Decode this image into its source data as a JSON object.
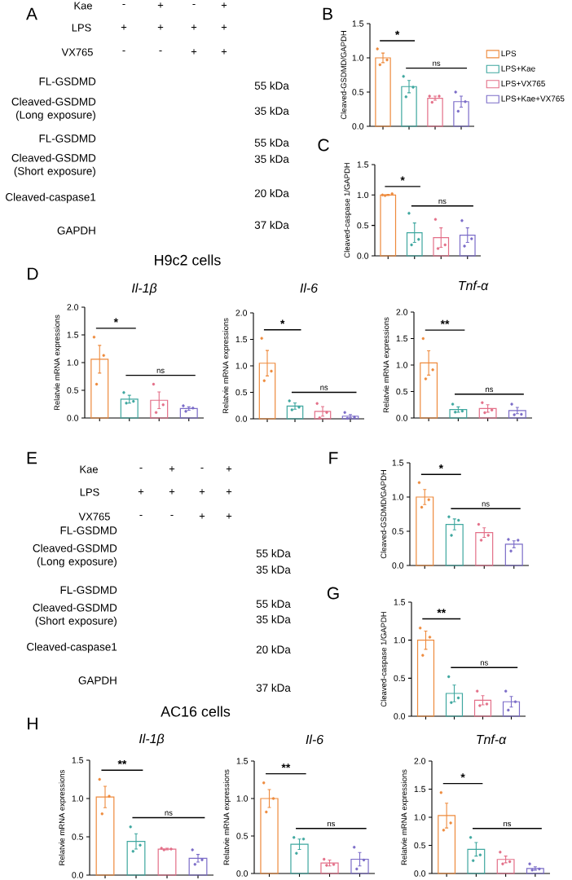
{
  "chart_data": [
    {
      "type": "other",
      "title": "A",
      "y_categories": [
        "Kae",
        "LPS",
        "VX765"
      ],
      "cell_labels": [
        [
          "-",
          "+",
          "-",
          "+"
        ],
        [
          "+",
          "+",
          "+",
          "+"
        ],
        [
          "-",
          "-",
          "+",
          "+"
        ]
      ],
      "annotations": [
        "FL-GSDMD",
        "Cleaved-GSDMD (Long exposure)",
        "FL-GSDMD",
        "Cleaved-GSDMD (Short exposure)",
        "Cleaved-caspase1",
        "GAPDH",
        "55 kDa",
        "35 kDa",
        "55 kDa",
        "35 kDa",
        "20 kDa",
        "37 kDa"
      ],
      "xlabel": "H9c2 cells"
    },
    {
      "type": "bar",
      "title": "B",
      "ylabel": "Cleaved-GSDMD/GAPDH",
      "categories": [
        null,
        null,
        null,
        null
      ],
      "series": [
        {
          "type": "bar",
          "name": "LPS",
          "color": "#EE8A3C",
          "values": [
            1.0,
            null,
            null,
            null
          ],
          "errors": [
            0.07,
            null,
            null,
            null
          ]
        },
        {
          "type": "bar",
          "name": "LPS+Kae",
          "color": "#3EA79F",
          "values": [
            null,
            0.58,
            null,
            null
          ],
          "errors": [
            null,
            0.09,
            null,
            null
          ]
        },
        {
          "type": "bar",
          "name": "LPS+VX765",
          "color": "#E36F88",
          "values": [
            null,
            null,
            0.41,
            null
          ],
          "errors": [
            null,
            null,
            0.03,
            null
          ]
        },
        {
          "type": "bar",
          "name": "LPS+Kae+VX765",
          "color": "#7B6CC8",
          "values": [
            null,
            null,
            null,
            0.36
          ],
          "errors": [
            null,
            null,
            null,
            0.08
          ]
        },
        {
          "type": "scatter",
          "values": [
            1.13,
            0.73,
            0.44,
            0.5
          ],
          "colors": [
            "#EE8A3C",
            "#3EA79F",
            "#E36F88",
            "#7B6CC8"
          ]
        },
        {
          "type": "scatter",
          "values": [
            0.97,
            0.57,
            0.44,
            0.36
          ],
          "colors": [
            "#EE8A3C",
            "#3EA79F",
            "#E36F88",
            "#7B6CC8"
          ]
        },
        {
          "type": "scatter",
          "values": [
            0.9,
            0.43,
            0.35,
            0.22
          ],
          "colors": [
            "#EE8A3C",
            "#3EA79F",
            "#E36F88",
            "#7B6CC8"
          ]
        }
      ],
      "ylim": [
        0,
        1.5
      ],
      "yticks": [
        {
          "value": 0,
          "label": "0.0"
        },
        {
          "value": 0.5,
          "label": "0.5"
        },
        {
          "value": 1,
          "label": "1.0"
        },
        {
          "value": 1.5,
          "label": "1.5"
        }
      ],
      "annotations": [
        "*",
        "ns"
      ],
      "tick_labels": "y",
      "marker": "circle",
      "legend": "right"
    },
    {
      "type": "bar",
      "title": "C",
      "ylabel": "Cleaved-caspase 1/GAPDH",
      "categories": [
        null,
        null,
        null,
        null
      ],
      "series": [
        {
          "type": "bar",
          "values": [
            1.0,
            0.38,
            0.3,
            0.34
          ],
          "colors": [
            "#EE8A3C",
            "#3EA79F",
            "#E36F88",
            "#7B6CC8"
          ],
          "errors": [
            0.01,
            0.16,
            0.16,
            0.12
          ]
        },
        {
          "type": "scatter",
          "values": [
            1.0,
            0.7,
            0.6,
            0.58
          ],
          "colors": [
            "#EE8A3C",
            "#3EA79F",
            "#E36F88",
            "#7B6CC8"
          ]
        },
        {
          "type": "scatter",
          "values": [
            1.02,
            0.27,
            0.18,
            0.28
          ],
          "colors": [
            "#EE8A3C",
            "#3EA79F",
            "#E36F88",
            "#7B6CC8"
          ]
        },
        {
          "type": "scatter",
          "values": [
            0.99,
            0.18,
            0.12,
            0.16
          ],
          "colors": [
            "#EE8A3C",
            "#3EA79F",
            "#E36F88",
            "#7B6CC8"
          ]
        }
      ],
      "ylim": [
        0,
        1.5
      ],
      "yticks": [
        {
          "value": 0,
          "label": "0.0"
        },
        {
          "value": 0.5,
          "label": "0.5"
        },
        {
          "value": 1,
          "label": "1.0"
        },
        {
          "value": 1.5,
          "label": "1.5"
        }
      ],
      "annotations": [
        "*",
        "ns"
      ],
      "tick_labels": "y",
      "marker": "circle"
    },
    {
      "type": "bar",
      "title": "D",
      "subtitle": "Il-1β",
      "ylabel": "Relatvie mRNA expressions",
      "categories": [
        null,
        null,
        null,
        null
      ],
      "series": [
        {
          "type": "bar",
          "values": [
            1.06,
            0.34,
            0.32,
            0.17
          ],
          "colors": [
            "#EE8A3C",
            "#3EA79F",
            "#E36F88",
            "#7B6CC8"
          ],
          "errors": [
            0.25,
            0.07,
            0.15,
            0.03
          ]
        },
        {
          "type": "scatter",
          "values": [
            1.46,
            0.46,
            0.61,
            0.22
          ],
          "colors": [
            "#EE8A3C",
            "#3EA79F",
            "#E36F88",
            "#7B6CC8"
          ]
        },
        {
          "type": "scatter",
          "values": [
            1.13,
            0.3,
            0.24,
            0.18
          ],
          "colors": [
            "#EE8A3C",
            "#3EA79F",
            "#E36F88",
            "#7B6CC8"
          ]
        },
        {
          "type": "scatter",
          "values": [
            0.61,
            0.27,
            0.1,
            0.12
          ],
          "colors": [
            "#EE8A3C",
            "#3EA79F",
            "#E36F88",
            "#7B6CC8"
          ]
        }
      ],
      "ylim": [
        0,
        2
      ],
      "yticks": [
        {
          "value": 0,
          "label": "0.0"
        },
        {
          "value": 0.5,
          "label": "0.5"
        },
        {
          "value": 1,
          "label": "1.0"
        },
        {
          "value": 1.5,
          "label": "1.5"
        },
        {
          "value": 2,
          "label": "2.0"
        }
      ],
      "annotations": [
        "*",
        "ns"
      ],
      "tick_labels": "y",
      "marker": "circle"
    },
    {
      "type": "bar",
      "subtitle": "Il-6",
      "ylabel": "Relatvie mRNA expressions",
      "categories": [
        null,
        null,
        null,
        null
      ],
      "series": [
        {
          "type": "bar",
          "values": [
            1.05,
            0.24,
            0.14,
            0.05
          ],
          "colors": [
            "#EE8A3C",
            "#3EA79F",
            "#E36F88",
            "#7B6CC8"
          ],
          "errors": [
            0.24,
            0.06,
            0.09,
            0.03
          ]
        },
        {
          "type": "scatter",
          "values": [
            1.52,
            0.34,
            0.29,
            0.12
          ],
          "colors": [
            "#EE8A3C",
            "#3EA79F",
            "#E36F88",
            "#7B6CC8"
          ]
        },
        {
          "type": "scatter",
          "values": [
            0.9,
            0.22,
            0.12,
            0.03
          ],
          "colors": [
            "#EE8A3C",
            "#3EA79F",
            "#E36F88",
            "#7B6CC8"
          ]
        },
        {
          "type": "scatter",
          "values": [
            0.72,
            0.17,
            0.02,
            0.01
          ],
          "colors": [
            "#EE8A3C",
            "#3EA79F",
            "#E36F88",
            "#7B6CC8"
          ]
        }
      ],
      "ylim": [
        0,
        2
      ],
      "yticks": [
        {
          "value": 0,
          "label": "0.0"
        },
        {
          "value": 0.5,
          "label": "0.5"
        },
        {
          "value": 1,
          "label": "1.0"
        },
        {
          "value": 1.5,
          "label": "1.5"
        },
        {
          "value": 2,
          "label": "2.0"
        }
      ],
      "annotations": [
        "*",
        "ns"
      ],
      "tick_labels": "y",
      "marker": "circle"
    },
    {
      "type": "bar",
      "subtitle": "Tnf-α",
      "ylabel": "Relatvie mRNA expressions",
      "categories": [
        null,
        null,
        null,
        null
      ],
      "series": [
        {
          "type": "bar",
          "values": [
            1.04,
            0.16,
            0.18,
            0.14
          ],
          "colors": [
            "#EE8A3C",
            "#3EA79F",
            "#E36F88",
            "#7B6CC8"
          ],
          "errors": [
            0.23,
            0.05,
            0.07,
            0.06
          ]
        },
        {
          "type": "scatter",
          "values": [
            1.5,
            0.26,
            0.29,
            0.26
          ],
          "colors": [
            "#EE8A3C",
            "#3EA79F",
            "#E36F88",
            "#7B6CC8"
          ]
        },
        {
          "type": "scatter",
          "values": [
            0.91,
            0.13,
            0.15,
            0.07
          ],
          "colors": [
            "#EE8A3C",
            "#3EA79F",
            "#E36F88",
            "#7B6CC8"
          ]
        },
        {
          "type": "scatter",
          "values": [
            0.74,
            0.11,
            0.1,
            0.06
          ],
          "colors": [
            "#EE8A3C",
            "#3EA79F",
            "#E36F88",
            "#7B6CC8"
          ]
        }
      ],
      "ylim": [
        0,
        2
      ],
      "yticks": [
        {
          "value": 0,
          "label": "0.0"
        },
        {
          "value": 0.5,
          "label": "0.5"
        },
        {
          "value": 1,
          "label": "1.0"
        },
        {
          "value": 1.5,
          "label": "1.5"
        },
        {
          "value": 2,
          "label": "2.0"
        }
      ],
      "annotations": [
        "**",
        "ns"
      ],
      "tick_labels": "y",
      "marker": "circle"
    },
    {
      "type": "other",
      "title": "E",
      "y_categories": [
        "Kae",
        "LPS",
        "VX765"
      ],
      "cell_labels": [
        [
          "-",
          "+",
          "-",
          "+"
        ],
        [
          "+",
          "+",
          "+",
          "+"
        ],
        [
          "-",
          "-",
          "+",
          "+"
        ]
      ],
      "annotations": [
        "FL-GSDMD",
        "Cleaved-GSDMD (Long exposure)",
        "FL-GSDMD",
        "Cleaved-GSDMD (Short exposure)",
        "Cleaved-caspase1",
        "GAPDH",
        "55 kDa",
        "35 kDa",
        "55 kDa",
        "35 kDa",
        "20 kDa",
        "37 kDa"
      ],
      "xlabel": "AC16 cells"
    },
    {
      "type": "bar",
      "title": "F",
      "ylabel": "Cleaved-GSDMD/GAPDH",
      "categories": [
        null,
        null,
        null,
        null
      ],
      "series": [
        {
          "type": "bar",
          "values": [
            1.0,
            0.6,
            0.48,
            0.31
          ],
          "colors": [
            "#EE8A3C",
            "#3EA79F",
            "#E36F88",
            "#7B6CC8"
          ],
          "errors": [
            0.11,
            0.08,
            0.07,
            0.05
          ]
        },
        {
          "type": "scatter",
          "values": [
            1.21,
            0.71,
            0.6,
            0.38
          ],
          "colors": [
            "#EE8A3C",
            "#3EA79F",
            "#E36F88",
            "#7B6CC8"
          ]
        },
        {
          "type": "scatter",
          "values": [
            0.96,
            0.66,
            0.44,
            0.37
          ],
          "colors": [
            "#EE8A3C",
            "#3EA79F",
            "#E36F88",
            "#7B6CC8"
          ]
        },
        {
          "type": "scatter",
          "values": [
            0.85,
            0.44,
            0.37,
            0.21
          ],
          "colors": [
            "#EE8A3C",
            "#3EA79F",
            "#E36F88",
            "#7B6CC8"
          ]
        }
      ],
      "ylim": [
        0,
        1.5
      ],
      "yticks": [
        {
          "value": 0,
          "label": "0.0"
        },
        {
          "value": 0.5,
          "label": "0.5"
        },
        {
          "value": 1,
          "label": "1.0"
        },
        {
          "value": 1.5,
          "label": "1.5"
        }
      ],
      "annotations": [
        "*",
        "ns"
      ],
      "tick_labels": "y",
      "marker": "circle"
    },
    {
      "type": "bar",
      "title": "G",
      "ylabel": "Cleaved-caspase 1/GAPDH",
      "categories": [
        null,
        null,
        null,
        null
      ],
      "series": [
        {
          "type": "bar",
          "values": [
            1.0,
            0.3,
            0.21,
            0.19
          ],
          "colors": [
            "#EE8A3C",
            "#3EA79F",
            "#E36F88",
            "#7B6CC8"
          ],
          "errors": [
            0.12,
            0.11,
            0.06,
            0.07
          ]
        },
        {
          "type": "scatter",
          "values": [
            1.16,
            0.52,
            0.33,
            0.33
          ],
          "colors": [
            "#EE8A3C",
            "#3EA79F",
            "#E36F88",
            "#7B6CC8"
          ]
        },
        {
          "type": "scatter",
          "values": [
            1.04,
            0.24,
            0.16,
            0.19
          ],
          "colors": [
            "#EE8A3C",
            "#3EA79F",
            "#E36F88",
            "#7B6CC8"
          ]
        },
        {
          "type": "scatter",
          "values": [
            0.8,
            0.18,
            0.14,
            0.08
          ],
          "colors": [
            "#EE8A3C",
            "#3EA79F",
            "#E36F88",
            "#7B6CC8"
          ]
        }
      ],
      "ylim": [
        0,
        1.5
      ],
      "yticks": [
        {
          "value": 0,
          "label": "0.0"
        },
        {
          "value": 0.5,
          "label": "0.5"
        },
        {
          "value": 1,
          "label": "1.0"
        },
        {
          "value": 1.5,
          "label": "1.5"
        }
      ],
      "annotations": [
        "**",
        "ns"
      ],
      "tick_labels": "y",
      "marker": "circle"
    },
    {
      "type": "bar",
      "title": "H",
      "subtitle": "Il-1β",
      "ylabel": "Relatvie mRNA expressions",
      "categories": [
        null,
        null,
        null,
        null
      ],
      "series": [
        {
          "type": "bar",
          "values": [
            1.02,
            0.44,
            0.34,
            0.22
          ],
          "colors": [
            "#EE8A3C",
            "#3EA79F",
            "#E36F88",
            "#7B6CC8"
          ],
          "errors": [
            0.14,
            0.1,
            0.01,
            0.05
          ]
        },
        {
          "type": "scatter",
          "values": [
            1.25,
            0.63,
            0.35,
            0.33
          ],
          "colors": [
            "#EE8A3C",
            "#3EA79F",
            "#E36F88",
            "#7B6CC8"
          ]
        },
        {
          "type": "scatter",
          "values": [
            1.03,
            0.39,
            0.34,
            0.2
          ],
          "colors": [
            "#EE8A3C",
            "#3EA79F",
            "#E36F88",
            "#7B6CC8"
          ]
        },
        {
          "type": "scatter",
          "values": [
            0.8,
            0.31,
            0.33,
            0.14
          ],
          "colors": [
            "#EE8A3C",
            "#3EA79F",
            "#E36F88",
            "#7B6CC8"
          ]
        }
      ],
      "ylim": [
        0,
        1.5
      ],
      "yticks": [
        {
          "value": 0,
          "label": "0.0"
        },
        {
          "value": 0.5,
          "label": "0.5"
        },
        {
          "value": 1,
          "label": "1.0"
        },
        {
          "value": 1.5,
          "label": "1.5"
        }
      ],
      "annotations": [
        "**",
        "ns"
      ],
      "tick_labels": "y",
      "marker": "circle"
    },
    {
      "type": "bar",
      "subtitle": "Il-6",
      "ylabel": "Relatvie mRNA expressions",
      "categories": [
        null,
        null,
        null,
        null
      ],
      "series": [
        {
          "type": "bar",
          "values": [
            1.0,
            0.39,
            0.14,
            0.19
          ],
          "colors": [
            "#EE8A3C",
            "#3EA79F",
            "#E36F88",
            "#7B6CC8"
          ],
          "errors": [
            0.12,
            0.07,
            0.04,
            0.09
          ]
        },
        {
          "type": "scatter",
          "values": [
            1.21,
            0.48,
            0.19,
            0.35
          ],
          "colors": [
            "#EE8A3C",
            "#3EA79F",
            "#E36F88",
            "#7B6CC8"
          ]
        },
        {
          "type": "scatter",
          "values": [
            1.0,
            0.46,
            0.12,
            0.18
          ],
          "colors": [
            "#EE8A3C",
            "#3EA79F",
            "#E36F88",
            "#7B6CC8"
          ]
        },
        {
          "type": "scatter",
          "values": [
            0.82,
            0.27,
            0.11,
            0.06
          ],
          "colors": [
            "#EE8A3C",
            "#3EA79F",
            "#E36F88",
            "#7B6CC8"
          ]
        }
      ],
      "ylim": [
        0,
        1.5
      ],
      "yticks": [
        {
          "value": 0,
          "label": "0.0"
        },
        {
          "value": 0.5,
          "label": "0.5"
        },
        {
          "value": 1,
          "label": "1.0"
        },
        {
          "value": 1.5,
          "label": "1.5"
        }
      ],
      "annotations": [
        "**",
        "ns"
      ],
      "tick_labels": "y",
      "marker": "circle"
    },
    {
      "type": "bar",
      "subtitle": "Tnf-α",
      "ylabel": "Relatvie mRNA expressions",
      "categories": [
        null,
        null,
        null,
        null
      ],
      "series": [
        {
          "type": "bar",
          "values": [
            1.03,
            0.43,
            0.25,
            0.09
          ],
          "colors": [
            "#EE8A3C",
            "#3EA79F",
            "#E36F88",
            "#7B6CC8"
          ],
          "errors": [
            0.22,
            0.12,
            0.06,
            0.03
          ]
        },
        {
          "type": "scatter",
          "values": [
            1.44,
            0.64,
            0.38,
            0.17
          ],
          "colors": [
            "#EE8A3C",
            "#3EA79F",
            "#E36F88",
            "#7B6CC8"
          ]
        },
        {
          "type": "scatter",
          "values": [
            0.9,
            0.33,
            0.21,
            0.08
          ],
          "colors": [
            "#EE8A3C",
            "#3EA79F",
            "#E36F88",
            "#7B6CC8"
          ]
        },
        {
          "type": "scatter",
          "values": [
            0.77,
            0.23,
            0.17,
            0.06
          ],
          "colors": [
            "#EE8A3C",
            "#3EA79F",
            "#E36F88",
            "#7B6CC8"
          ]
        }
      ],
      "ylim": [
        0,
        2
      ],
      "yticks": [
        {
          "value": 0,
          "label": "0.0"
        },
        {
          "value": 0.5,
          "label": "0.5"
        },
        {
          "value": 1,
          "label": "1.0"
        },
        {
          "value": 1.5,
          "label": "1.5"
        },
        {
          "value": 2,
          "label": "2.0"
        }
      ],
      "annotations": [
        "*",
        "ns"
      ],
      "tick_labels": "y",
      "marker": "circle"
    }
  ]
}
